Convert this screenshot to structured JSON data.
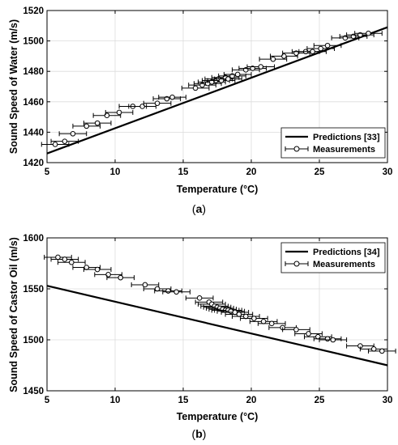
{
  "chart_data": [
    {
      "type": "scatter",
      "panel_label": "a",
      "xlabel": "Temperature (°C)",
      "ylabel": "Sound Speed of Water (m/s)",
      "xlim": [
        5,
        30
      ],
      "ylim": [
        1420,
        1520
      ],
      "xticks": [
        5,
        10,
        15,
        20,
        25,
        30
      ],
      "yticks": [
        1420,
        1440,
        1460,
        1480,
        1500,
        1520
      ],
      "grid": true,
      "legend_position": "bottom-right",
      "series": [
        {
          "name": "Predictions [33]",
          "kind": "line",
          "x": [
            5,
            30
          ],
          "y": [
            1426,
            1509
          ]
        },
        {
          "name": "Measurements",
          "kind": "scatter_errorbar",
          "x_error": 1,
          "x": [
            5.6,
            6.3,
            6.9,
            7.9,
            8.7,
            9.4,
            10.3,
            11.3,
            12.0,
            13.1,
            13.8,
            14.2,
            15.9,
            16.4,
            16.8,
            17.1,
            17.4,
            17.6,
            17.8,
            18.1,
            18.3,
            18.6,
            19.0,
            19.6,
            20.1,
            20.7,
            21.6,
            22.4,
            23.3,
            24.0,
            24.5,
            25.1,
            25.6,
            26.9,
            27.5,
            28.0,
            28.6
          ],
          "y": [
            1432,
            1434,
            1439,
            1444,
            1446,
            1451,
            1453,
            1457,
            1457,
            1459,
            1462,
            1463,
            1469,
            1471,
            1472,
            1473,
            1474,
            1475,
            1474,
            1476,
            1475,
            1477,
            1478,
            1481,
            1482,
            1483,
            1488,
            1490,
            1492,
            1493,
            1493,
            1495,
            1497,
            1502,
            1503,
            1504,
            1505
          ]
        }
      ]
    },
    {
      "type": "scatter",
      "panel_label": "b",
      "xlabel": "Temperature (°C)",
      "ylabel": "Sound Speed of Castor Oil (m/s)",
      "xlim": [
        5,
        30
      ],
      "ylim": [
        1450,
        1600
      ],
      "xticks": [
        5,
        10,
        15,
        20,
        25,
        30
      ],
      "yticks": [
        1450,
        1500,
        1550,
        1600
      ],
      "grid": true,
      "legend_position": "top-right",
      "series": [
        {
          "name": "Predictions [34]",
          "kind": "line",
          "x": [
            5,
            30
          ],
          "y": [
            1553,
            1475
          ]
        },
        {
          "name": "Measurements",
          "kind": "scatter_errorbar",
          "x_error": 1,
          "x": [
            5.8,
            6.3,
            6.8,
            7.9,
            8.7,
            9.5,
            10.4,
            12.2,
            13.1,
            13.9,
            14.5,
            16.2,
            16.9,
            17.1,
            17.3,
            17.5,
            17.7,
            17.9,
            18.1,
            18.3,
            18.5,
            18.8,
            19.1,
            19.6,
            20.2,
            20.9,
            21.5,
            22.3,
            23.3,
            24.2,
            24.9,
            25.6,
            26.0,
            28.0,
            29.0,
            29.6
          ],
          "y": [
            1581,
            1579,
            1576,
            1571,
            1569,
            1564,
            1561,
            1554,
            1550,
            1548,
            1547,
            1541,
            1537,
            1535,
            1533,
            1532,
            1531,
            1530,
            1529,
            1529,
            1528,
            1527,
            1525,
            1523,
            1521,
            1518,
            1516,
            1512,
            1510,
            1506,
            1503,
            1501,
            1500,
            1494,
            1491,
            1489
          ]
        }
      ]
    }
  ],
  "captions": [
    {
      "open": "(",
      "label": "a",
      "close": ")"
    },
    {
      "open": "(",
      "label": "b",
      "close": ")"
    }
  ]
}
